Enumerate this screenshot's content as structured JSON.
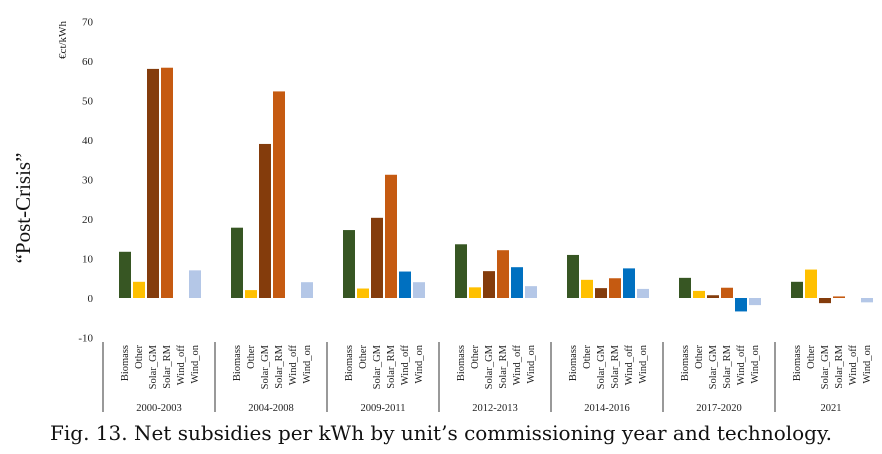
{
  "caption": "Fig. 13. Net subsidies per kWh by unit’s commissioning year and technology.",
  "side_label": "“Post-Crisis”",
  "chart_data": {
    "type": "bar",
    "ylabel": "€ct/kWh",
    "ylim": [
      -10,
      70
    ],
    "yticks": [
      -10,
      0,
      10,
      20,
      30,
      40,
      50,
      60,
      70
    ],
    "grid": false,
    "technologies": [
      "Biomass",
      "Other",
      "Solar_GM",
      "Solar_RM",
      "Wind_off",
      "Wind_on"
    ],
    "colors": {
      "Biomass": "#375623",
      "Other": "#FFC000",
      "Solar_GM": "#843C0C",
      "Solar_RM": "#C55A11",
      "Wind_off": "#0070C0",
      "Wind_on": "#B4C7E7"
    },
    "groups": [
      {
        "name": "2000-2003",
        "values": [
          11.7,
          4.1,
          58.0,
          58.3,
          0,
          7.0
        ]
      },
      {
        "name": "2004-2008",
        "values": [
          17.8,
          2.0,
          39.0,
          52.3,
          0,
          4.0
        ]
      },
      {
        "name": "2009-2011",
        "values": [
          17.2,
          2.4,
          20.3,
          31.2,
          6.7,
          4.0
        ]
      },
      {
        "name": "2012-2013",
        "values": [
          13.6,
          2.7,
          6.8,
          12.1,
          7.8,
          3.0
        ]
      },
      {
        "name": "2014-2016",
        "values": [
          10.9,
          4.6,
          2.5,
          5.0,
          7.5,
          2.3
        ]
      },
      {
        "name": "2017-2020",
        "values": [
          5.1,
          1.8,
          0.7,
          2.6,
          -3.4,
          -1.8
        ]
      },
      {
        "name": "2021",
        "values": [
          4.1,
          7.2,
          -1.3,
          0.4,
          0,
          -1.1
        ]
      }
    ]
  }
}
